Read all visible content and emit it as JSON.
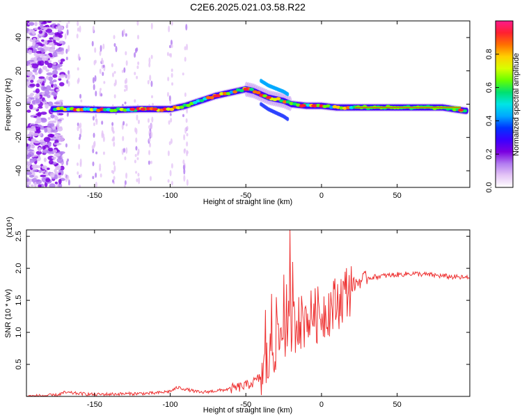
{
  "page_title": "C2E6.2025.021.03.58.R22",
  "chart_data": [
    {
      "type": "heatmap",
      "title": "C2E6.2025.021.03.58.R22",
      "xlabel": "Height of straight line (km)",
      "ylabel": "Frequency (Hz)",
      "xlim": [
        -195,
        98
      ],
      "ylim": [
        -50,
        50
      ],
      "x_ticks": [
        -150,
        -100,
        -50,
        0,
        50
      ],
      "y_ticks": [
        -40,
        -20,
        0,
        20,
        40
      ],
      "colorbar": {
        "label": "Normalized spectral amplitude",
        "ticks": [
          0.0,
          0.2,
          0.4,
          0.6,
          0.8
        ],
        "range": [
          0,
          1
        ],
        "colors": [
          "#ffffff",
          "#e5c6f6",
          "#b27cf0",
          "#7b00e0",
          "#3a00ff",
          "#0033ff",
          "#00a8ff",
          "#00e5e5",
          "#00e070",
          "#66ff00",
          "#d8ff00",
          "#ffd000",
          "#ff7000",
          "#ff2030",
          "#ff1a8c"
        ]
      },
      "ridge": {
        "x": [
          -178,
          -160,
          -140,
          -120,
          -100,
          -90,
          -80,
          -70,
          -60,
          -50,
          -45,
          -40,
          -35,
          -30,
          -25,
          -20,
          -10,
          0,
          10,
          20,
          40,
          60,
          80,
          95
        ],
        "y": [
          -3,
          -3,
          -3.5,
          -3,
          -3,
          -1,
          2,
          5,
          7,
          9,
          8,
          6,
          4,
          3,
          2,
          0,
          -1,
          -1,
          -2,
          -2,
          -2,
          -2,
          -2,
          -4
        ]
      },
      "noise_band_x": [
        -195,
        -175
      ]
    },
    {
      "type": "line",
      "xlabel": "Height of straight line (km)",
      "ylabel": "SNR (10 * v/v)",
      "y_multiplier": "(x10⁴)",
      "xlim": [
        -195,
        98
      ],
      "ylim": [
        0,
        2.6
      ],
      "x_ticks": [
        -150,
        -100,
        -50,
        0,
        50
      ],
      "y_ticks": [
        0.5,
        1.0,
        1.5,
        2.0,
        2.5
      ],
      "color": "#ee3333",
      "series": [
        {
          "x": [
            -195,
            -175,
            -170,
            -150,
            -130,
            -110,
            -100,
            -95,
            -80,
            -65,
            -55,
            -50,
            -45,
            -40,
            -35,
            -30,
            -25,
            -20,
            -15,
            -10,
            -5,
            0,
            5,
            10,
            15,
            20,
            25,
            30,
            40,
            50,
            60,
            70,
            80,
            90,
            98
          ],
          "values": [
            0.0,
            0.02,
            0.06,
            0.03,
            0.04,
            0.05,
            0.08,
            0.14,
            0.06,
            0.1,
            0.14,
            0.17,
            0.22,
            0.3,
            0.55,
            0.8,
            1.0,
            1.1,
            1.15,
            1.2,
            1.25,
            1.3,
            1.38,
            1.45,
            1.6,
            1.72,
            1.8,
            1.85,
            1.88,
            1.9,
            1.92,
            1.9,
            1.88,
            1.86,
            1.85
          ]
        }
      ],
      "peaks": [
        {
          "x": -37,
          "value": 1.35
        },
        {
          "x": -33,
          "value": 1.6
        },
        {
          "x": -30,
          "value": 1.55
        },
        {
          "x": -25,
          "value": 1.9
        },
        {
          "x": -23,
          "value": 1.75
        },
        {
          "x": -21,
          "value": 2.6
        },
        {
          "x": -19,
          "value": 2.1
        },
        {
          "x": -15,
          "value": 1.55
        },
        {
          "x": -10,
          "value": 1.35
        },
        {
          "x": -5,
          "value": 1.45
        }
      ]
    }
  ]
}
